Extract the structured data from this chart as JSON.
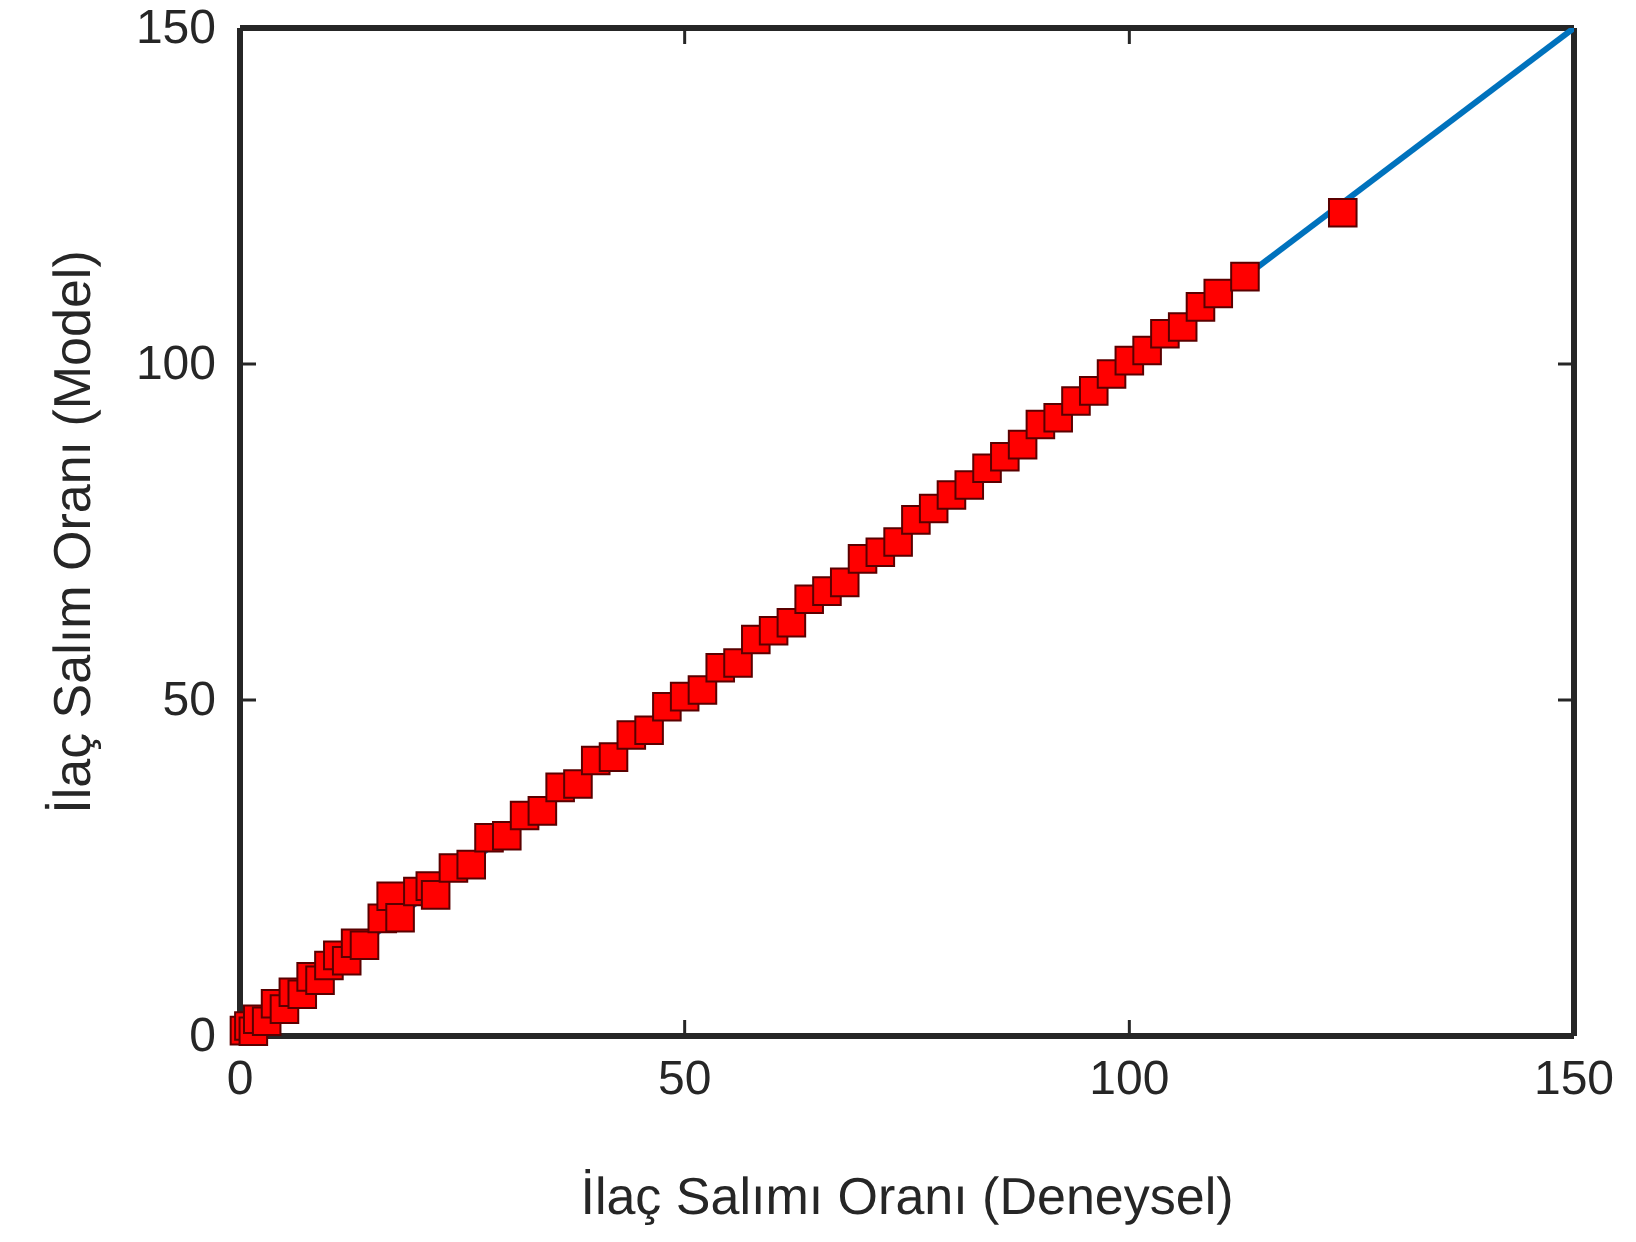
{
  "chart_data": {
    "type": "scatter",
    "xlabel": "İlaç Salımı Oranı (Deneysel)",
    "ylabel": "İlaç Salım Oranı (Model)",
    "xlim": [
      0,
      150
    ],
    "ylim": [
      0,
      150
    ],
    "xticks": [
      0,
      50,
      100,
      150
    ],
    "yticks": [
      0,
      50,
      100,
      150
    ],
    "grid": false,
    "series": [
      {
        "type": "line",
        "color": "#0072bd",
        "marker": "none",
        "line_style": "solid",
        "x": [
          0,
          150
        ],
        "values": [
          0,
          150
        ]
      },
      {
        "color": "#ff0000",
        "marker": "square",
        "x": [
          0.5,
          1,
          1.5,
          2,
          3,
          4,
          5,
          6,
          7,
          8,
          9,
          10,
          11,
          12,
          13,
          14,
          16,
          17,
          18,
          20,
          21.4,
          22,
          24,
          26,
          28,
          30,
          32,
          34,
          36,
          38,
          40,
          42,
          44,
          46,
          48,
          50,
          52,
          54,
          56,
          58,
          60,
          62,
          64,
          66,
          68,
          70,
          72,
          74,
          76,
          78,
          80,
          82,
          84,
          86,
          88,
          90,
          92,
          94,
          96,
          98,
          100,
          102,
          104,
          106,
          108,
          110,
          113,
          124
        ],
        "values": [
          0.8,
          1.5,
          0.7,
          2.5,
          2.2,
          4.8,
          4,
          6.5,
          6.2,
          8.8,
          8.3,
          10.5,
          12,
          11.2,
          13.8,
          13.5,
          17.5,
          20.8,
          17.6,
          21.5,
          22.3,
          21,
          25,
          25.5,
          29.5,
          29.8,
          32.8,
          33.5,
          37,
          37.5,
          41,
          41.5,
          44.8,
          45.5,
          49,
          50.5,
          51.5,
          54.8,
          55.5,
          59,
          60.3,
          61.5,
          65,
          66.2,
          67.5,
          71,
          72,
          73.5,
          76.8,
          78.5,
          80.5,
          82,
          84.5,
          86.2,
          88,
          91,
          92,
          94.5,
          96,
          98.5,
          100.5,
          102,
          104.5,
          105.5,
          108.5,
          110.5,
          113,
          122.5
        ]
      }
    ]
  }
}
